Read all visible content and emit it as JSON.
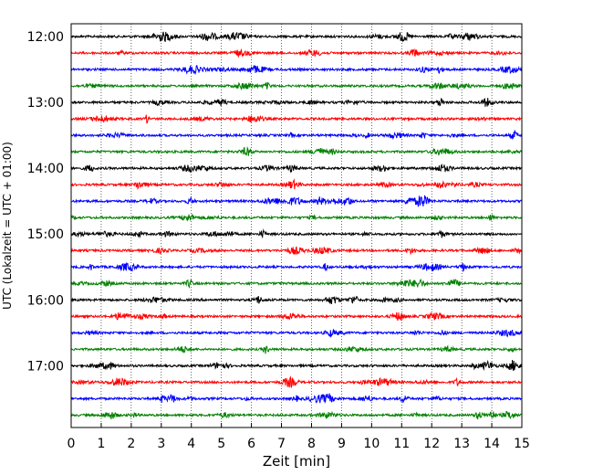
{
  "chart_data": {
    "type": "line",
    "title": "",
    "xlabel": "Zeit  [min]",
    "ylabel": "UTC (Lokalzeit = UTC + 01:00)",
    "xlim": [
      0,
      15
    ],
    "x_ticks": [
      0,
      1,
      2,
      3,
      4,
      5,
      6,
      7,
      8,
      9,
      10,
      11,
      12,
      13,
      14,
      15
    ],
    "y_tick_labels": [
      "12:00",
      "13:00",
      "14:00",
      "15:00",
      "16:00",
      "17:00"
    ],
    "grid": "vertical-dotted",
    "trace_interval_minutes": 15,
    "traces": [
      {
        "start": "12:00",
        "color": "#000000"
      },
      {
        "start": "12:15",
        "color": "#ff0000"
      },
      {
        "start": "12:30",
        "color": "#0000ff"
      },
      {
        "start": "12:45",
        "color": "#008000"
      },
      {
        "start": "13:00",
        "color": "#000000"
      },
      {
        "start": "13:15",
        "color": "#ff0000"
      },
      {
        "start": "13:30",
        "color": "#0000ff"
      },
      {
        "start": "13:45",
        "color": "#008000"
      },
      {
        "start": "14:00",
        "color": "#000000"
      },
      {
        "start": "14:15",
        "color": "#ff0000"
      },
      {
        "start": "14:30",
        "color": "#0000ff"
      },
      {
        "start": "14:45",
        "color": "#008000"
      },
      {
        "start": "15:00",
        "color": "#000000"
      },
      {
        "start": "15:15",
        "color": "#ff0000"
      },
      {
        "start": "15:30",
        "color": "#0000ff"
      },
      {
        "start": "15:45",
        "color": "#008000"
      },
      {
        "start": "16:00",
        "color": "#000000"
      },
      {
        "start": "16:15",
        "color": "#ff0000"
      },
      {
        "start": "16:30",
        "color": "#0000ff"
      },
      {
        "start": "16:45",
        "color": "#008000"
      },
      {
        "start": "17:00",
        "color": "#000000"
      },
      {
        "start": "17:15",
        "color": "#ff0000"
      },
      {
        "start": "17:30",
        "color": "#0000ff"
      },
      {
        "start": "17:45",
        "color": "#008000"
      }
    ]
  }
}
